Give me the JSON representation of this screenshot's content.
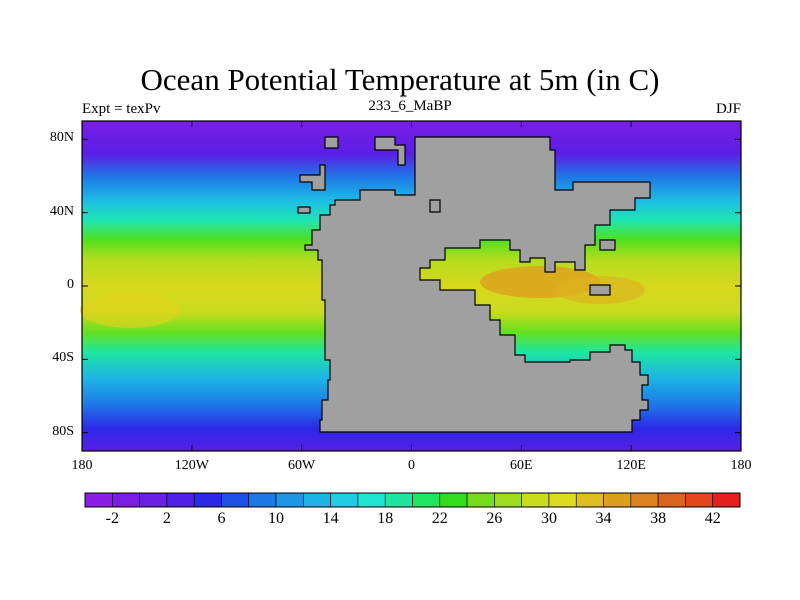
{
  "title": "Ocean Potential Temperature at 5m (in C)",
  "left_subtitle": "Expt = texPv",
  "center_subtitle": "233_6_MaBP",
  "right_subtitle": "DJF",
  "axes": {
    "lat_labels": [
      "80N",
      "40N",
      "0",
      "40S",
      "80S"
    ],
    "lat_values": [
      80,
      40,
      0,
      -40,
      -80
    ],
    "lon_labels": [
      "180",
      "120W",
      "60W",
      "0",
      "60E",
      "120E",
      "180"
    ],
    "lon_values": [
      -180,
      -120,
      -60,
      0,
      60,
      120,
      180
    ]
  },
  "colorbar": {
    "labels": [
      "-2",
      "2",
      "6",
      "10",
      "14",
      "18",
      "22",
      "26",
      "30",
      "34",
      "38",
      "42"
    ],
    "colors": [
      "#8c1ee6",
      "#7a1ee6",
      "#6a1ee6",
      "#5020e6",
      "#2a2ae6",
      "#1e50e6",
      "#1e78e6",
      "#1e96e6",
      "#1eb4e6",
      "#1ecce6",
      "#1ee6d2",
      "#1ee6a0",
      "#1ee664",
      "#32dc1e",
      "#78dc1e",
      "#a0dc1e",
      "#c8dc1e",
      "#dcdc1e",
      "#dcbe1e",
      "#dca01e",
      "#dc821e",
      "#dc641e",
      "#e6461e",
      "#e61e1e"
    ]
  },
  "land_color": "#a0a0a0"
}
